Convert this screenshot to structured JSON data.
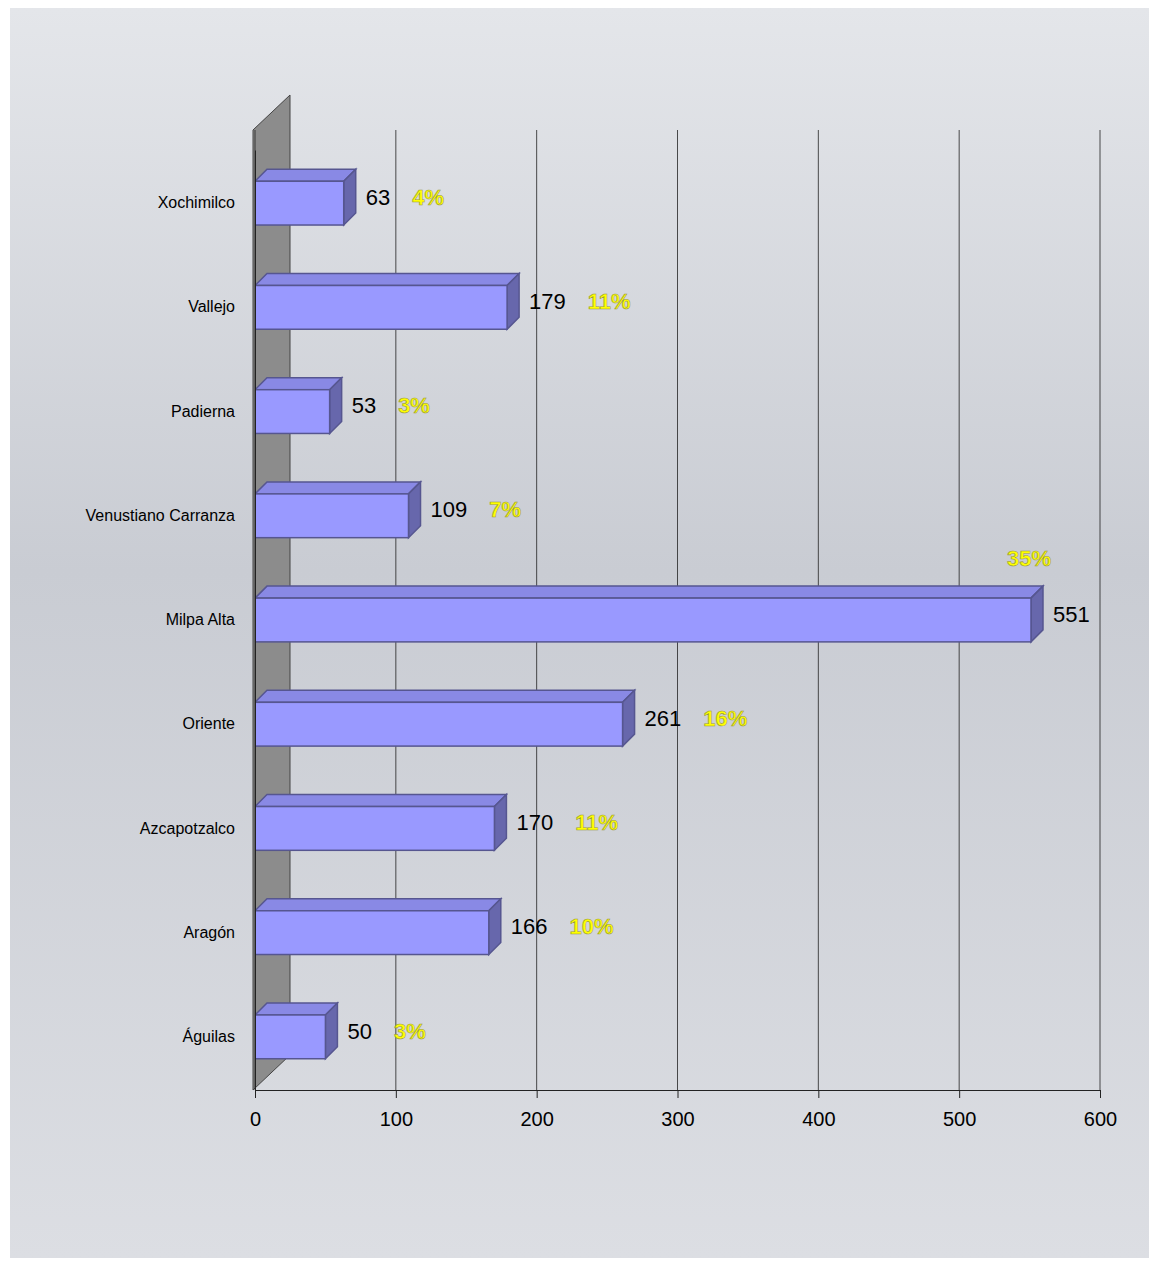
{
  "chart_data": {
    "type": "bar",
    "orientation": "horizontal",
    "categories": [
      "Xochimilco",
      "Vallejo",
      "Padierna",
      "Venustiano Carranza",
      "Milpa Alta",
      "Oriente",
      "Azcapotzalco",
      "Aragón",
      "Águilas"
    ],
    "values": [
      63,
      179,
      53,
      109,
      551,
      261,
      170,
      166,
      50
    ],
    "percent_labels": [
      "4%",
      "11%",
      "3%",
      "7%",
      "35%",
      "16%",
      "11%",
      "10%",
      "3%"
    ],
    "color": "#9999ff",
    "xlim": [
      0,
      600
    ],
    "xticks": [
      0,
      100,
      200,
      300,
      400,
      500,
      600
    ],
    "grid": true,
    "data_labels": true
  }
}
